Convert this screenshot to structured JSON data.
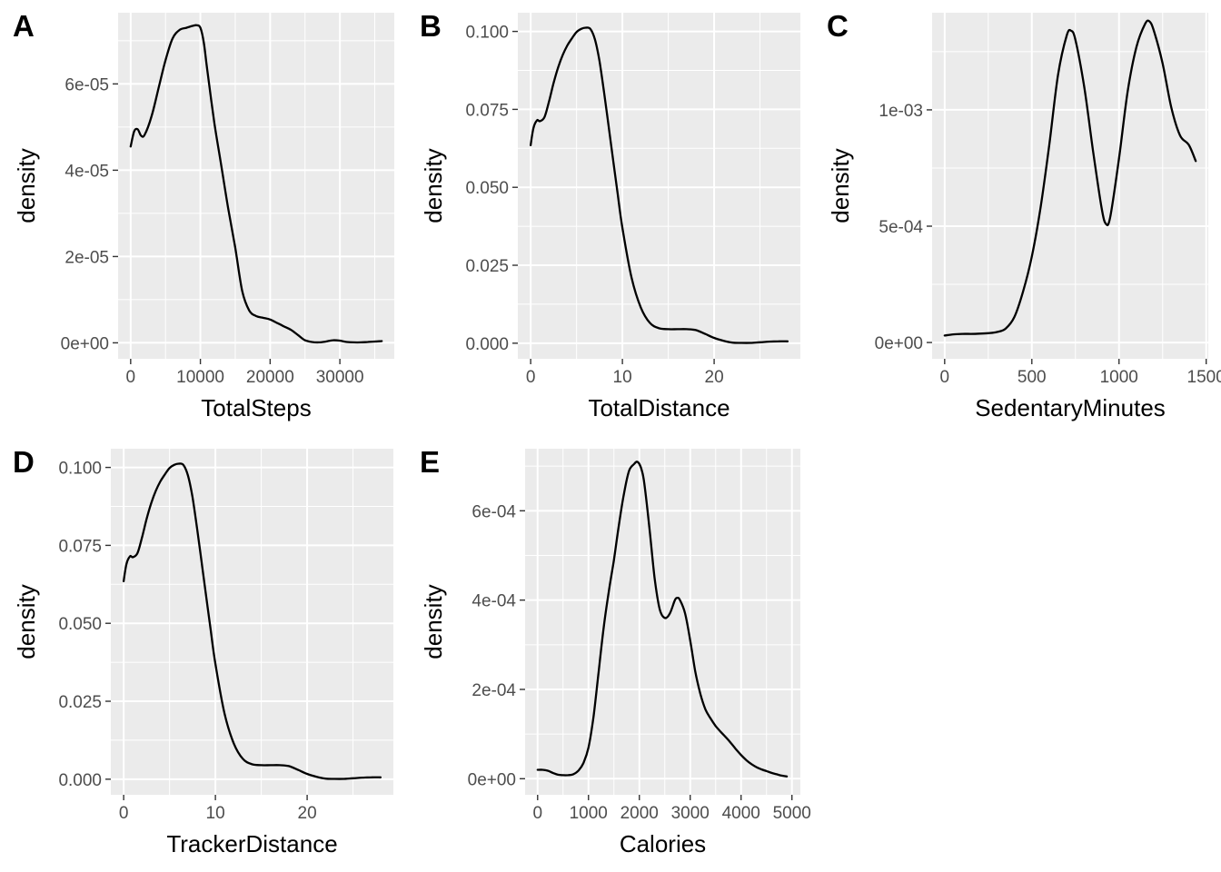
{
  "chart_data": [
    {
      "type": "line",
      "tag": "A",
      "xlabel": "TotalSteps",
      "ylabel": "density",
      "xlim": [
        -1800,
        37800
      ],
      "ylim": [
        -3.7e-06,
        7.65e-05
      ],
      "grid": true,
      "x_ticks": [
        0,
        10000,
        20000,
        30000
      ],
      "x_tick_labels": [
        "0",
        "10000",
        "20000",
        "30000"
      ],
      "y_ticks": [
        0,
        2e-05,
        4e-05,
        6e-05
      ],
      "y_tick_labels": [
        "0e+00",
        "2e-05",
        "4e-05",
        "6e-05"
      ],
      "series": [
        {
          "x": [
            0,
            500,
            1000,
            1500,
            2000,
            3000,
            4000,
            5000,
            6000,
            7000,
            8000,
            9000,
            9500,
            10000,
            10500,
            11000,
            12000,
            13000,
            14000,
            15000,
            16000,
            17000,
            18000,
            19000,
            20000,
            21000,
            22000,
            23000,
            24000,
            25000,
            26000,
            27000,
            28000,
            29000,
            30000,
            31000,
            32000,
            33000,
            34000,
            35000,
            36000
          ],
          "y": [
            4.55e-05,
            4.9e-05,
            4.95e-05,
            4.8e-05,
            4.82e-05,
            5.25e-05,
            5.9e-05,
            6.55e-05,
            7.05e-05,
            7.25e-05,
            7.3e-05,
            7.35e-05,
            7.36e-05,
            7.3e-05,
            6.95e-05,
            6.3e-05,
            5.1e-05,
            4.1e-05,
            3.1e-05,
            2.2e-05,
            1.2e-05,
            7.5e-06,
            6.2e-06,
            5.8e-06,
            5.4e-06,
            4.6e-06,
            3.8e-06,
            3e-06,
            1.8e-06,
            6e-07,
            2e-07,
            1e-07,
            3e-07,
            6e-07,
            5e-07,
            2e-07,
            1e-07,
            1e-07,
            2e-07,
            3e-07,
            4e-07
          ]
        }
      ]
    },
    {
      "type": "line",
      "tag": "B",
      "xlabel": "TotalDistance",
      "ylabel": "density",
      "xlim": [
        -1.4,
        29.4
      ],
      "ylim": [
        -0.005,
        0.106
      ],
      "grid": true,
      "x_ticks": [
        0,
        10,
        20
      ],
      "x_tick_labels": [
        "0",
        "10",
        "20"
      ],
      "y_ticks": [
        0,
        0.025,
        0.05,
        0.075,
        0.1
      ],
      "y_tick_labels": [
        "0.000",
        "0.025",
        "0.050",
        "0.075",
        "0.100"
      ],
      "series": [
        {
          "x": [
            0,
            0.3,
            0.7,
            1.0,
            1.5,
            2.0,
            2.5,
            3.0,
            3.5,
            4.0,
            4.5,
            5.0,
            5.5,
            6.0,
            6.5,
            7.0,
            7.5,
            8.0,
            8.5,
            9.0,
            9.5,
            10.0,
            11.0,
            12.0,
            13.0,
            14.0,
            15.0,
            16.0,
            17.0,
            18.0,
            19.0,
            20.0,
            21.0,
            22.0,
            23.0,
            24.0,
            25.0,
            26.0,
            27.0,
            28.0
          ],
          "y": [
            0.0635,
            0.069,
            0.0715,
            0.0712,
            0.0725,
            0.0775,
            0.0835,
            0.0885,
            0.0925,
            0.0955,
            0.0978,
            0.0998,
            0.1008,
            0.1012,
            0.1008,
            0.0975,
            0.0905,
            0.0805,
            0.0695,
            0.0585,
            0.0475,
            0.037,
            0.021,
            0.0115,
            0.0065,
            0.0048,
            0.0045,
            0.0045,
            0.0045,
            0.0042,
            0.003,
            0.0017,
            0.0008,
            0.0002,
            0.0001,
            0.0001,
            0.0003,
            0.0005,
            0.0006,
            0.0006
          ]
        }
      ]
    },
    {
      "type": "line",
      "tag": "C",
      "xlabel": "SedentaryMinutes",
      "ylabel": "density",
      "xlim": [
        -72,
        1512
      ],
      "ylim": [
        -7e-05,
        0.0014175
      ],
      "grid": true,
      "x_ticks": [
        0,
        500,
        1000,
        1500
      ],
      "x_tick_labels": [
        "0",
        "500",
        "1000",
        "1500"
      ],
      "y_ticks": [
        0,
        0.0005,
        0.001
      ],
      "y_tick_labels": [
        "0e+00",
        "5e-04",
        "1e-03"
      ],
      "series": [
        {
          "x": [
            0,
            50,
            100,
            150,
            200,
            250,
            300,
            350,
            400,
            450,
            500,
            550,
            600,
            650,
            700,
            725,
            750,
            800,
            850,
            900,
            925,
            950,
            1000,
            1050,
            1100,
            1150,
            1175,
            1200,
            1250,
            1300,
            1350,
            1400,
            1440
          ],
          "y": [
            3e-05,
            3.5e-05,
            3.7e-05,
            3.7e-05,
            3.8e-05,
            4e-05,
            4.5e-05,
            6e-05,
            0.00011,
            0.00022,
            0.00037,
            0.00058,
            0.00085,
            0.00115,
            0.00132,
            0.00134,
            0.0013,
            0.0011,
            0.00083,
            0.00058,
            0.00051,
            0.00054,
            0.00079,
            0.00108,
            0.00127,
            0.00137,
            0.00138,
            0.00134,
            0.0012,
            0.00101,
            0.00089,
            0.00085,
            0.00078
          ]
        }
      ]
    },
    {
      "type": "line",
      "tag": "D",
      "xlabel": "TrackerDistance",
      "ylabel": "density",
      "xlim": [
        -1.4,
        29.4
      ],
      "ylim": [
        -0.005,
        0.106
      ],
      "grid": true,
      "x_ticks": [
        0,
        10,
        20
      ],
      "x_tick_labels": [
        "0",
        "10",
        "20"
      ],
      "y_ticks": [
        0,
        0.025,
        0.05,
        0.075,
        0.1
      ],
      "y_tick_labels": [
        "0.000",
        "0.025",
        "0.050",
        "0.075",
        "0.100"
      ],
      "series": [
        {
          "x": [
            0,
            0.3,
            0.7,
            1.0,
            1.5,
            2.0,
            2.5,
            3.0,
            3.5,
            4.0,
            4.5,
            5.0,
            5.5,
            6.0,
            6.5,
            7.0,
            7.5,
            8.0,
            8.5,
            9.0,
            9.5,
            10.0,
            11.0,
            12.0,
            13.0,
            14.0,
            15.0,
            16.0,
            17.0,
            18.0,
            19.0,
            20.0,
            21.0,
            22.0,
            23.0,
            24.0,
            25.0,
            26.0,
            27.0,
            28.0
          ],
          "y": [
            0.0635,
            0.069,
            0.0715,
            0.0712,
            0.0725,
            0.0775,
            0.0835,
            0.0885,
            0.0925,
            0.0955,
            0.0978,
            0.0998,
            0.1008,
            0.1012,
            0.1008,
            0.0975,
            0.0905,
            0.0805,
            0.0695,
            0.0585,
            0.0475,
            0.037,
            0.021,
            0.0115,
            0.0065,
            0.0048,
            0.0045,
            0.0045,
            0.0045,
            0.0042,
            0.003,
            0.0017,
            0.0008,
            0.0002,
            0.0001,
            0.0001,
            0.0003,
            0.0005,
            0.0006,
            0.0006
          ]
        }
      ]
    },
    {
      "type": "line",
      "tag": "E",
      "xlabel": "Calories",
      "ylabel": "density",
      "xlim": [
        -246,
        5166
      ],
      "ylim": [
        -3.6e-05,
        0.000739
      ],
      "grid": true,
      "x_ticks": [
        0,
        1000,
        2000,
        3000,
        4000,
        5000
      ],
      "x_tick_labels": [
        "0",
        "1000",
        "2000",
        "3000",
        "4000",
        "5000"
      ],
      "y_ticks": [
        0,
        0.0002,
        0.0004,
        0.0006
      ],
      "y_tick_labels": [
        "0e+00",
        "2e-04",
        "4e-04",
        "6e-04"
      ],
      "series": [
        {
          "x": [
            0,
            100,
            200,
            300,
            400,
            500,
            600,
            700,
            800,
            900,
            1000,
            1100,
            1200,
            1300,
            1400,
            1500,
            1600,
            1700,
            1800,
            1900,
            1950,
            2000,
            2050,
            2100,
            2200,
            2300,
            2400,
            2500,
            2600,
            2700,
            2750,
            2800,
            2900,
            3000,
            3100,
            3200,
            3300,
            3400,
            3500,
            3600,
            3700,
            3800,
            3900,
            4000,
            4100,
            4200,
            4300,
            4400,
            4500,
            4600,
            4700,
            4800,
            4900
          ],
          "y": [
            2e-05,
            2e-05,
            1.8e-05,
            1.3e-05,
            9e-06,
            8e-06,
            8e-06,
            1e-05,
            1.8e-05,
            3.5e-05,
            7e-05,
            0.00014,
            0.00024,
            0.00034,
            0.00042,
            0.00049,
            0.00057,
            0.00064,
            0.00069,
            0.000705,
            0.00071,
            0.000705,
            0.00069,
            0.00066,
            0.00056,
            0.00045,
            0.00038,
            0.00036,
            0.00037,
            0.0004,
            0.000405,
            0.0004,
            0.00037,
            0.00031,
            0.00024,
            0.00019,
            0.000155,
            0.000135,
            0.000118,
            0.000105,
            9.3e-05,
            8e-05,
            6.6e-05,
            5.3e-05,
            4.2e-05,
            3.3e-05,
            2.6e-05,
            2.1e-05,
            1.7e-05,
            1.3e-05,
            1e-05,
            7e-06,
            5e-06
          ]
        }
      ]
    }
  ]
}
